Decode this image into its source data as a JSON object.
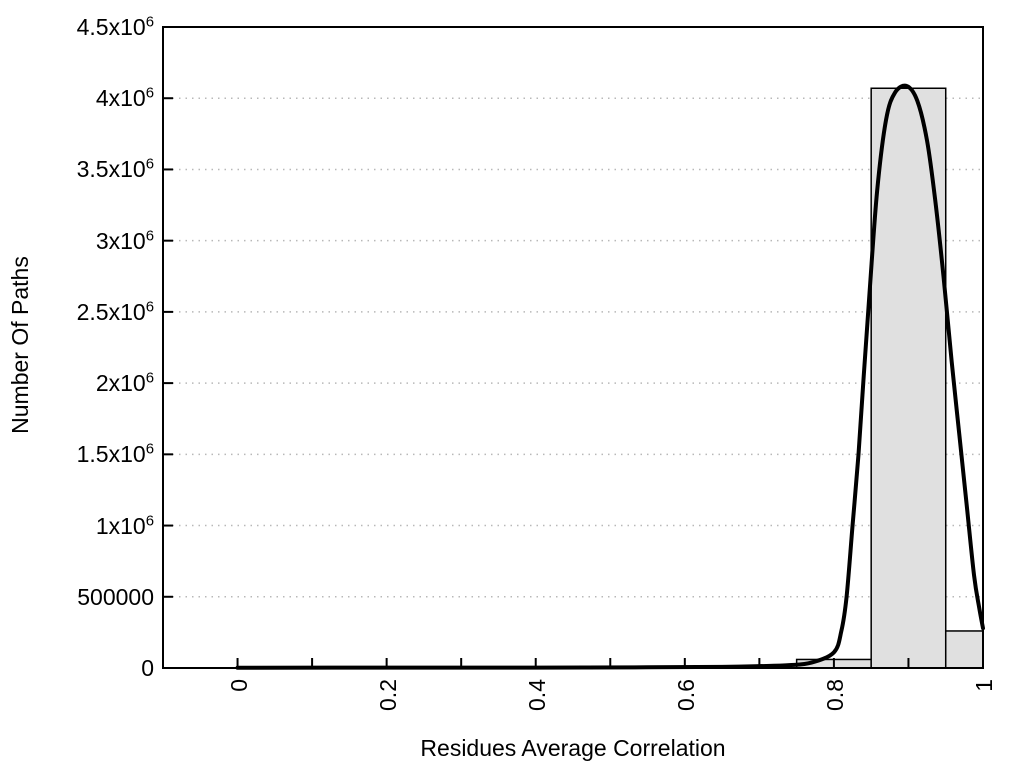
{
  "chart_data": {
    "type": "bar",
    "subtype": "histogram-with-fit-curve",
    "title": "",
    "xlabel": "Residues Average Correlation",
    "ylabel": "Number Of Paths",
    "xlim": [
      -0.1,
      1.0
    ],
    "ylim": [
      0,
      4500000
    ],
    "background_color": "#ffffff",
    "axes_color": "#000000",
    "grid": {
      "horizontal": true,
      "vertical": false,
      "style": "dotted",
      "color": "#b8b8b8"
    },
    "legend": "none",
    "yticks": [
      {
        "value": 0,
        "label": "0"
      },
      {
        "value": 500000,
        "label": "500000"
      },
      {
        "value": 1000000,
        "label": "1x10^6"
      },
      {
        "value": 1500000,
        "label": "1.5x10^6"
      },
      {
        "value": 2000000,
        "label": "2x10^6"
      },
      {
        "value": 2500000,
        "label": "2.5x10^6"
      },
      {
        "value": 3000000,
        "label": "3x10^6"
      },
      {
        "value": 3500000,
        "label": "3.5x10^6"
      },
      {
        "value": 4000000,
        "label": "4x10^6"
      },
      {
        "value": 4500000,
        "label": "4.5x10^6"
      }
    ],
    "xticks_major": [
      {
        "value": 0.0,
        "label": "0"
      },
      {
        "value": 0.2,
        "label": "0.2"
      },
      {
        "value": 0.4,
        "label": "0.4"
      },
      {
        "value": 0.6,
        "label": "0.6"
      },
      {
        "value": 0.8,
        "label": "0.8"
      },
      {
        "value": 1.0,
        "label": "1"
      }
    ],
    "xticks_minor": [
      0,
      0.1,
      0.2,
      0.3,
      0.4,
      0.5,
      0.6,
      0.7,
      0.8,
      0.9,
      1.0
    ],
    "bars": {
      "fill_color": "#e0e0e0",
      "stroke_color": "#000000",
      "bins": [
        {
          "x_start": 0.75,
          "x_end": 0.85,
          "value": 60000
        },
        {
          "x_start": 0.85,
          "x_end": 0.95,
          "value": 4070000
        },
        {
          "x_start": 0.95,
          "x_end": 1.0,
          "value": 260000
        }
      ]
    },
    "fit_curve": {
      "color": "#000000",
      "points": [
        [
          0.0,
          2000
        ],
        [
          0.2,
          2500
        ],
        [
          0.4,
          3000
        ],
        [
          0.55,
          5000
        ],
        [
          0.65,
          8000
        ],
        [
          0.7,
          13000
        ],
        [
          0.74,
          20000
        ],
        [
          0.77,
          38000
        ],
        [
          0.8,
          110000
        ],
        [
          0.81,
          260000
        ],
        [
          0.817,
          500000
        ],
        [
          0.825,
          1000000
        ],
        [
          0.833,
          1500000
        ],
        [
          0.84,
          2050000
        ],
        [
          0.848,
          2650000
        ],
        [
          0.858,
          3350000
        ],
        [
          0.87,
          3850000
        ],
        [
          0.882,
          4040000
        ],
        [
          0.898,
          4085000
        ],
        [
          0.912,
          3980000
        ],
        [
          0.925,
          3700000
        ],
        [
          0.936,
          3280000
        ],
        [
          0.947,
          2750000
        ],
        [
          0.958,
          2150000
        ],
        [
          0.968,
          1650000
        ],
        [
          0.978,
          1150000
        ],
        [
          0.988,
          650000
        ],
        [
          0.995,
          420000
        ],
        [
          1.0,
          280000
        ]
      ]
    }
  }
}
